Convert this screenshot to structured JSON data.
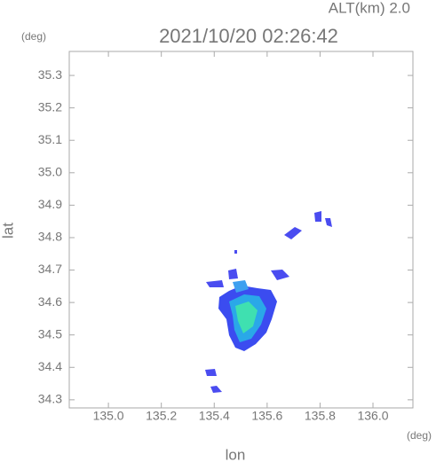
{
  "chart_data": {
    "type": "map",
    "title": "2021/10/20 02:26:42",
    "subtitle": "ALT(km) 2.0",
    "x_label": "lon",
    "y_label": "lat",
    "x_unit": "(deg)",
    "y_unit": "(deg)",
    "xlim": [
      134.852,
      136.151
    ],
    "ylim": [
      34.275,
      35.374
    ],
    "xticks": [
      {
        "value": 135,
        "label": "135.0"
      },
      135.2,
      135.4,
      135.6,
      135.8,
      {
        "value": 136,
        "label": "136.0"
      }
    ],
    "yticks": [
      34.3,
      34.4,
      34.5,
      34.6,
      34.7,
      34.8,
      34.9,
      {
        "value": 35,
        "label": "35.0"
      },
      35.1,
      35.2,
      35.3
    ]
  }
}
